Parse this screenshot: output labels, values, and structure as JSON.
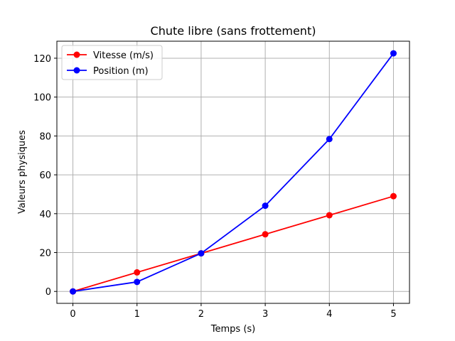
{
  "chart_data": {
    "type": "line",
    "title": "Chute libre (sans frottement)",
    "xlabel": "Temps (s)",
    "ylabel": "Valeurs physiques",
    "x": [
      0,
      1,
      2,
      3,
      4,
      5
    ],
    "xticks": [
      "0",
      "1",
      "2",
      "3",
      "4",
      "5"
    ],
    "yticks": [
      "0",
      "20",
      "40",
      "60",
      "80",
      "100",
      "120"
    ],
    "xlim": [
      -0.25,
      5.25
    ],
    "ylim": [
      -6.13,
      128.75
    ],
    "grid": true,
    "legend_position": "top-left",
    "series": [
      {
        "name": "Vitesse (m/s)",
        "color": "#ff0000",
        "marker": "circle",
        "values": [
          0,
          9.8,
          19.6,
          29.4,
          39.2,
          49.0
        ]
      },
      {
        "name": "Position (m)",
        "color": "#0000ff",
        "marker": "circle",
        "values": [
          0,
          4.9,
          19.6,
          44.1,
          78.4,
          122.5
        ]
      }
    ]
  }
}
